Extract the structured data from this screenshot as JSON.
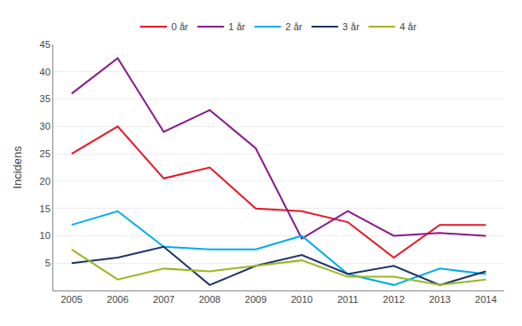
{
  "chart_data": {
    "type": "line",
    "ylabel": "Incidens",
    "x": [
      2005,
      2006,
      2007,
      2008,
      2009,
      2010,
      2011,
      2012,
      2013,
      2014
    ],
    "series": [
      {
        "name": "0 år",
        "color": "#e8182a",
        "values": [
          25,
          30,
          20.5,
          22.5,
          15,
          14.5,
          12.5,
          6,
          12,
          12
        ]
      },
      {
        "name": "1 år",
        "color": "#8b1a8b",
        "values": [
          36,
          42.5,
          29,
          33,
          26,
          9.5,
          14.5,
          10,
          10.5,
          10
        ]
      },
      {
        "name": "2 år",
        "color": "#00aeef",
        "values": [
          12,
          14.5,
          8,
          7.5,
          7.5,
          10,
          3,
          1,
          4,
          3
        ]
      },
      {
        "name": "3 år",
        "color": "#1f3468",
        "values": [
          5,
          6,
          8,
          1,
          4.5,
          6.5,
          3,
          4.5,
          1,
          3.5
        ]
      },
      {
        "name": "4 år",
        "color": "#9ab822",
        "values": [
          7.5,
          2,
          4,
          3.5,
          4.5,
          5.5,
          2.5,
          2.5,
          1,
          2
        ]
      }
    ],
    "xlim": [
      2004.6,
      2014.4
    ],
    "xticks": [
      2005,
      2006,
      2007,
      2008,
      2009,
      2010,
      2011,
      2012,
      2013,
      2014
    ],
    "ylim": [
      0,
      45
    ],
    "yticks": [
      5,
      10,
      15,
      20,
      25,
      30,
      35,
      40,
      45
    ],
    "grid": true,
    "legend": "top"
  }
}
